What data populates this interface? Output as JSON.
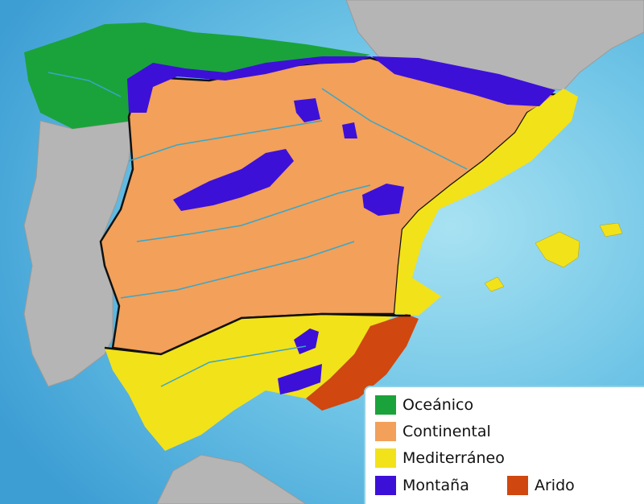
{
  "legend": {
    "items": [
      {
        "label": "Oceánico",
        "color": "#1aa33a"
      },
      {
        "label": "Continental",
        "color": "#f2a05a"
      },
      {
        "label": "Mediterráneo",
        "color": "#f2e21a"
      },
      {
        "label": "Montaña",
        "color": "#3d10d8"
      },
      {
        "label": "Arido",
        "color": "#d0470f"
      }
    ]
  },
  "colors": {
    "sea": "#5ab6de",
    "neighbour_land": "#b5b5b5",
    "border_line": "#111111",
    "rivers": "#3aa6c8"
  }
}
